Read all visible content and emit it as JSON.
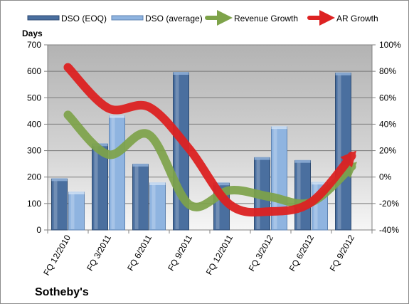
{
  "chart_data": {
    "type": "bar",
    "title": "Sotheby's",
    "categories": [
      "FQ 12/2010",
      "FQ 3/2011",
      "FQ 6/2011",
      "FQ 9/2011",
      "FQ 12/2011",
      "FQ 3/2012",
      "FQ 6/2012",
      "FQ 9/2012"
    ],
    "ylabel_left": "Days",
    "ylim_left": [
      0,
      700
    ],
    "yticks_left": [
      "0",
      "100",
      "200",
      "300",
      "400",
      "500",
      "600",
      "700"
    ],
    "ylim_right": [
      -40,
      100
    ],
    "yticks_right": [
      "-40%",
      "-20%",
      "0%",
      "20%",
      "40%",
      "60%",
      "80%",
      "100%"
    ],
    "grid": true,
    "legend_position": "top",
    "bar_series": [
      {
        "name": "DSO (EOQ)",
        "color": "#4a6f9f",
        "values": [
          193,
          325,
          248,
          595,
          177,
          273,
          262,
          593
        ]
      },
      {
        "name": "DSO (average)",
        "color": "#8fb4e0",
        "values": [
          143,
          432,
          178,
          null,
          0,
          390,
          180,
          null
        ]
      }
    ],
    "line_series": [
      {
        "name": "Revenue Growth",
        "color": "#7ea34a",
        "axis": "right",
        "values": [
          47,
          17,
          32,
          -21,
          -10,
          -15,
          -19,
          8
        ]
      },
      {
        "name": "AR Growth",
        "color": "#dd2222",
        "axis": "right",
        "values": [
          83,
          52,
          53,
          21,
          -21,
          -26,
          -19,
          16
        ]
      }
    ]
  }
}
